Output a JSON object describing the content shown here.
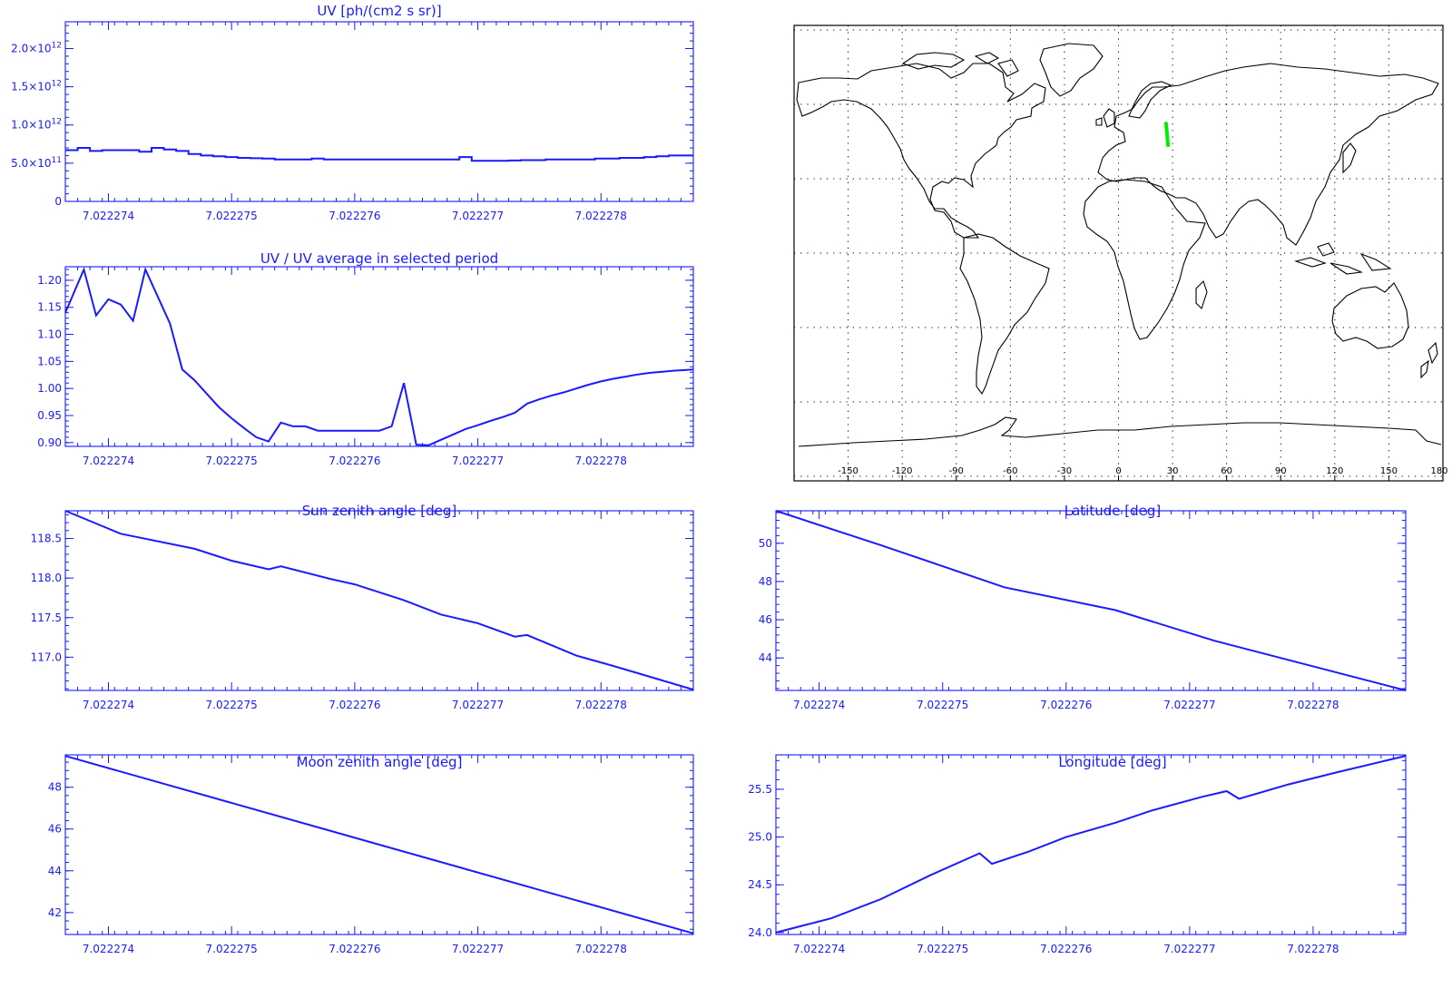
{
  "colors": {
    "plot": "#1a1aff",
    "axis": "#1a1aff",
    "map_frame": "#000000",
    "coast": "#000000",
    "track": "#00ee00",
    "background": "#ffffff"
  },
  "x_ticks": [
    "7.022274",
    "7.022275",
    "7.022276",
    "7.022277",
    "7.022278"
  ],
  "chart_data": [
    {
      "type": "line",
      "title": "UV [ph/(cm2 s sr)]",
      "step": true,
      "x": [
        7.0222737,
        7.0222738,
        7.0222739,
        7.022274,
        7.0222741,
        7.0222742,
        7.0222743,
        7.0222744,
        7.0222745,
        7.0222746,
        7.0222747,
        7.0222748,
        7.0222749,
        7.022275,
        7.0222751,
        7.0222752,
        7.0222753,
        7.0222754,
        7.0222755,
        7.0222756,
        7.0222757,
        7.0222758,
        7.0222759,
        7.022276,
        7.0222761,
        7.0222762,
        7.0222763,
        7.0222764,
        7.0222765,
        7.0222766,
        7.0222767,
        7.0222768,
        7.0222769,
        7.022277,
        7.0222771,
        7.0222772,
        7.0222773,
        7.0222774,
        7.0222775,
        7.0222776,
        7.0222777,
        7.0222778,
        7.0222779,
        7.022278,
        7.0222781,
        7.0222782,
        7.0222783,
        7.0222784,
        7.0222785,
        7.0222786,
        7.0222787
      ],
      "values": [
        670000000000.0,
        700000000000.0,
        660000000000.0,
        670000000000.0,
        670000000000.0,
        670000000000.0,
        650000000000.0,
        700000000000.0,
        680000000000.0,
        660000000000.0,
        620000000000.0,
        600000000000.0,
        590000000000.0,
        580000000000.0,
        570000000000.0,
        565000000000.0,
        560000000000.0,
        550000000000.0,
        550000000000.0,
        550000000000.0,
        560000000000.0,
        550000000000.0,
        550000000000.0,
        550000000000.0,
        550000000000.0,
        550000000000.0,
        550000000000.0,
        550000000000.0,
        550000000000.0,
        550000000000.0,
        550000000000.0,
        550000000000.0,
        580000000000.0,
        530000000000.0,
        530000000000.0,
        530000000000.0,
        535000000000.0,
        540000000000.0,
        540000000000.0,
        550000000000.0,
        550000000000.0,
        550000000000.0,
        550000000000.0,
        560000000000.0,
        560000000000.0,
        570000000000.0,
        570000000000.0,
        580000000000.0,
        590000000000.0,
        600000000000.0,
        600000000000.0
      ],
      "xlim": [
        7.02227365,
        7.02227875
      ],
      "ylim": [
        0,
        2350000000000.0
      ],
      "yticks": [
        0,
        500000000000.0,
        1000000000000.0,
        1500000000000.0,
        2000000000000.0
      ],
      "ytick_labels": [
        {
          "mant": "0",
          "exp": ""
        },
        {
          "mant": "5.0×10",
          "exp": "11"
        },
        {
          "mant": "1.0×10",
          "exp": "12"
        },
        {
          "mant": "1.5×10",
          "exp": "12"
        },
        {
          "mant": "2.0×10",
          "exp": "12"
        }
      ]
    },
    {
      "type": "line",
      "title": "UV / UV average in selected period",
      "x": [
        7.02227365,
        7.0222738,
        7.0222739,
        7.022274,
        7.0222741,
        7.0222742,
        7.0222743,
        7.0222744,
        7.0222745,
        7.0222746,
        7.0222747,
        7.0222748,
        7.0222749,
        7.022275,
        7.0222751,
        7.0222752,
        7.0222753,
        7.0222754,
        7.0222755,
        7.0222756,
        7.0222757,
        7.0222758,
        7.0222759,
        7.022276,
        7.0222761,
        7.0222762,
        7.0222763,
        7.0222764,
        7.0222765,
        7.0222766,
        7.0222767,
        7.0222768,
        7.0222769,
        7.022277,
        7.0222771,
        7.0222772,
        7.0222773,
        7.0222774,
        7.0222775,
        7.0222776,
        7.0222777,
        7.0222778,
        7.0222779,
        7.022278,
        7.0222781,
        7.0222782,
        7.0222783,
        7.0222784,
        7.0222785,
        7.0222786,
        7.02227875
      ],
      "values": [
        1.14,
        1.22,
        1.135,
        1.165,
        1.155,
        1.125,
        1.22,
        1.17,
        1.12,
        1.035,
        1.015,
        0.99,
        0.965,
        0.945,
        0.927,
        0.91,
        0.902,
        0.937,
        0.93,
        0.93,
        0.922,
        0.922,
        0.922,
        0.922,
        0.922,
        0.922,
        0.93,
        1.01,
        0.896,
        0.895,
        0.905,
        0.915,
        0.925,
        0.932,
        0.94,
        0.947,
        0.955,
        0.972,
        0.98,
        0.987,
        0.993,
        1.0,
        1.007,
        1.013,
        1.018,
        1.022,
        1.026,
        1.029,
        1.031,
        1.033,
        1.035
      ],
      "xlim": [
        7.02227365,
        7.02227875
      ],
      "ylim": [
        0.893,
        1.225
      ],
      "yticks": [
        0.9,
        0.95,
        1.0,
        1.05,
        1.1,
        1.15,
        1.2
      ],
      "ytick_labels": [
        "0.90",
        "0.95",
        "1.00",
        "1.05",
        "1.10",
        "1.15",
        "1.20"
      ]
    },
    {
      "type": "line",
      "title": "Sun zenith angle [deg]",
      "x": [
        7.02227365,
        7.0222741,
        7.0222747,
        7.022275,
        7.0222753,
        7.0222754,
        7.0222758,
        7.022276,
        7.0222764,
        7.0222767,
        7.022277,
        7.0222773,
        7.0222774,
        7.0222778,
        7.0222781,
        7.02227875
      ],
      "values": [
        118.85,
        118.56,
        118.37,
        118.22,
        118.11,
        118.15,
        117.99,
        117.92,
        117.72,
        117.54,
        117.43,
        117.26,
        117.28,
        117.02,
        116.89,
        116.59
      ],
      "xlim": [
        7.02227365,
        7.02227875
      ],
      "ylim": [
        116.58,
        118.85
      ],
      "yticks": [
        117.0,
        117.5,
        118.0,
        118.5
      ],
      "ytick_labels": [
        "117.0",
        "117.5",
        "118.0",
        "118.5"
      ]
    },
    {
      "type": "line",
      "title": "Latitude [deg]",
      "x": [
        7.02227365,
        7.0222745,
        7.0222755,
        7.0222764,
        7.0222772,
        7.02227875
      ],
      "values": [
        51.7,
        49.9,
        47.7,
        46.5,
        44.9,
        42.3
      ],
      "xlim": [
        7.02227365,
        7.02227875
      ],
      "ylim": [
        42.3,
        51.7
      ],
      "yticks": [
        44,
        46,
        48,
        50
      ],
      "ytick_labels": [
        "44",
        "46",
        "48",
        "50"
      ]
    },
    {
      "type": "line",
      "title": "Moon zenith angle [deg]",
      "x": [
        7.02227365,
        7.02227875
      ],
      "values": [
        49.5,
        41.0
      ],
      "xlim": [
        7.02227365,
        7.02227875
      ],
      "ylim": [
        40.95,
        49.55
      ],
      "yticks": [
        42,
        44,
        46,
        48
      ],
      "ytick_labels": [
        "42",
        "44",
        "46",
        "48"
      ]
    },
    {
      "type": "line",
      "title": "Longitude [deg]",
      "x": [
        7.02227365,
        7.0222738,
        7.0222741,
        7.0222745,
        7.0222749,
        7.0222753,
        7.0222754,
        7.0222757,
        7.022276,
        7.0222764,
        7.0222767,
        7.0222771,
        7.0222773,
        7.0222774,
        7.0222778,
        7.0222782,
        7.02227875
      ],
      "values": [
        24.0,
        24.05,
        24.15,
        24.35,
        24.6,
        24.83,
        24.72,
        24.85,
        25.0,
        25.15,
        25.28,
        25.42,
        25.48,
        25.4,
        25.55,
        25.68,
        25.85
      ],
      "xlim": [
        7.02227365,
        7.02227875
      ],
      "ylim": [
        23.98,
        25.86
      ],
      "yticks": [
        24.0,
        24.5,
        25.0,
        25.5
      ],
      "ytick_labels": [
        "24.0",
        "24.5",
        "25.0",
        "25.5"
      ]
    },
    {
      "type": "map",
      "xticks": [
        "-150",
        "-120",
        "-90",
        "-60",
        "-30",
        "0",
        "30",
        "60",
        "90",
        "120",
        "150",
        "180"
      ],
      "track": [
        [
          26.4,
          51.7
        ],
        [
          27.5,
          42.3
        ]
      ]
    }
  ]
}
